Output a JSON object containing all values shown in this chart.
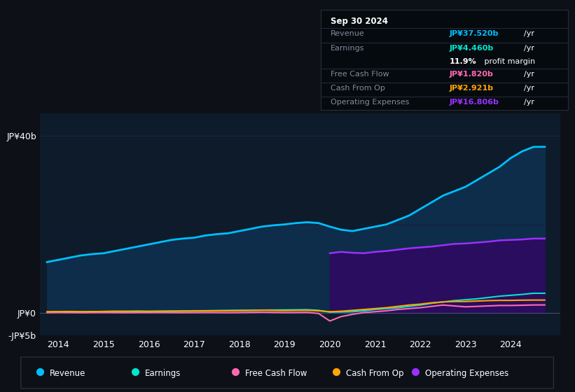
{
  "bg_color": "#0d1117",
  "plot_bg_color": "#0d1b2a",
  "years": [
    2013.75,
    2014.0,
    2014.25,
    2014.5,
    2014.75,
    2015.0,
    2015.25,
    2015.5,
    2015.75,
    2016.0,
    2016.25,
    2016.5,
    2016.75,
    2017.0,
    2017.25,
    2017.5,
    2017.75,
    2018.0,
    2018.25,
    2018.5,
    2018.75,
    2019.0,
    2019.25,
    2019.5,
    2019.75,
    2020.0,
    2020.25,
    2020.5,
    2020.75,
    2021.0,
    2021.25,
    2021.5,
    2021.75,
    2022.0,
    2022.25,
    2022.5,
    2022.75,
    2023.0,
    2023.25,
    2023.5,
    2023.75,
    2024.0,
    2024.25,
    2024.5,
    2024.75
  ],
  "revenue": [
    11.5,
    12.0,
    12.5,
    13.0,
    13.3,
    13.5,
    14.0,
    14.5,
    15.0,
    15.5,
    16.0,
    16.5,
    16.8,
    17.0,
    17.5,
    17.8,
    18.0,
    18.5,
    19.0,
    19.5,
    19.8,
    20.0,
    20.3,
    20.5,
    20.3,
    19.5,
    18.8,
    18.5,
    19.0,
    19.5,
    20.0,
    21.0,
    22.0,
    23.5,
    25.0,
    26.5,
    27.5,
    28.5,
    30.0,
    31.5,
    33.0,
    35.0,
    36.5,
    37.5,
    37.52
  ],
  "earnings": [
    0.2,
    0.25,
    0.3,
    0.28,
    0.32,
    0.35,
    0.38,
    0.4,
    0.42,
    0.4,
    0.42,
    0.45,
    0.48,
    0.5,
    0.52,
    0.55,
    0.58,
    0.6,
    0.62,
    0.65,
    0.68,
    0.7,
    0.72,
    0.75,
    0.6,
    0.2,
    0.25,
    0.3,
    0.5,
    0.8,
    1.0,
    1.2,
    1.5,
    1.8,
    2.2,
    2.5,
    2.8,
    3.0,
    3.2,
    3.5,
    3.8,
    4.0,
    4.2,
    4.46,
    4.46
  ],
  "free_cash_flow": [
    0.1,
    0.12,
    0.1,
    0.08,
    0.1,
    0.12,
    0.1,
    0.08,
    0.1,
    0.1,
    0.12,
    0.1,
    0.08,
    0.1,
    0.12,
    0.1,
    0.08,
    0.1,
    0.15,
    0.2,
    0.15,
    0.1,
    0.12,
    0.15,
    -0.1,
    -1.8,
    -0.8,
    -0.3,
    0.1,
    0.3,
    0.5,
    0.8,
    1.0,
    1.2,
    1.5,
    1.8,
    1.6,
    1.4,
    1.5,
    1.6,
    1.7,
    1.7,
    1.75,
    1.82,
    1.82
  ],
  "cash_from_op": [
    0.3,
    0.32,
    0.35,
    0.3,
    0.32,
    0.35,
    0.38,
    0.35,
    0.38,
    0.35,
    0.38,
    0.4,
    0.42,
    0.45,
    0.48,
    0.5,
    0.52,
    0.55,
    0.6,
    0.65,
    0.6,
    0.55,
    0.6,
    0.62,
    0.5,
    0.3,
    0.4,
    0.6,
    0.8,
    1.0,
    1.2,
    1.5,
    1.8,
    2.0,
    2.3,
    2.5,
    2.6,
    2.6,
    2.7,
    2.8,
    2.85,
    2.85,
    2.9,
    2.921,
    2.921
  ],
  "operating_expenses": [
    0.0,
    0.0,
    0.0,
    0.0,
    0.0,
    0.0,
    0.0,
    0.0,
    0.0,
    0.0,
    0.0,
    0.0,
    0.0,
    0.0,
    0.0,
    0.0,
    0.0,
    0.0,
    0.0,
    0.0,
    0.0,
    0.0,
    0.0,
    0.0,
    0.0,
    13.5,
    13.8,
    13.6,
    13.5,
    13.8,
    14.0,
    14.3,
    14.6,
    14.8,
    15.0,
    15.3,
    15.6,
    15.7,
    15.9,
    16.1,
    16.4,
    16.5,
    16.6,
    16.806,
    16.806
  ],
  "revenue_color": "#00bfff",
  "earnings_color": "#00e5cc",
  "fcf_color": "#ff69b4",
  "cashop_color": "#ffa500",
  "opex_color": "#9b30ff",
  "fill_revenue_color": "#0a3a5c",
  "fill_opex_color": "#3d1a6e",
  "ylim_min": -5,
  "ylim_max": 45,
  "ytick_vals": [
    -5,
    0,
    40
  ],
  "ytick_labels": [
    "-JP¥5b",
    "JP¥0",
    "JP¥40b"
  ],
  "xticks": [
    2014,
    2015,
    2016,
    2017,
    2018,
    2019,
    2020,
    2021,
    2022,
    2023,
    2024
  ],
  "info_box": {
    "title": "Sep 30 2024",
    "rows": [
      {
        "label": "Revenue",
        "value": "JP¥37.520b",
        "unit": "/yr",
        "color": "#00bfff"
      },
      {
        "label": "Earnings",
        "value": "JP¥4.460b",
        "unit": "/yr",
        "color": "#00e5cc"
      },
      {
        "label": "",
        "value": "11.9%",
        "unit": " profit margin",
        "color": "#ffffff"
      },
      {
        "label": "Free Cash Flow",
        "value": "JP¥1.820b",
        "unit": "/yr",
        "color": "#ff69b4"
      },
      {
        "label": "Cash From Op",
        "value": "JP¥2.921b",
        "unit": "/yr",
        "color": "#ffa500"
      },
      {
        "label": "Operating Expenses",
        "value": "JP¥16.806b",
        "unit": "/yr",
        "color": "#9b30ff"
      }
    ]
  },
  "legend_items": [
    {
      "label": "Revenue",
      "color": "#00bfff"
    },
    {
      "label": "Earnings",
      "color": "#00e5cc"
    },
    {
      "label": "Free Cash Flow",
      "color": "#ff69b4"
    },
    {
      "label": "Cash From Op",
      "color": "#ffa500"
    },
    {
      "label": "Operating Expenses",
      "color": "#9b30ff"
    }
  ]
}
